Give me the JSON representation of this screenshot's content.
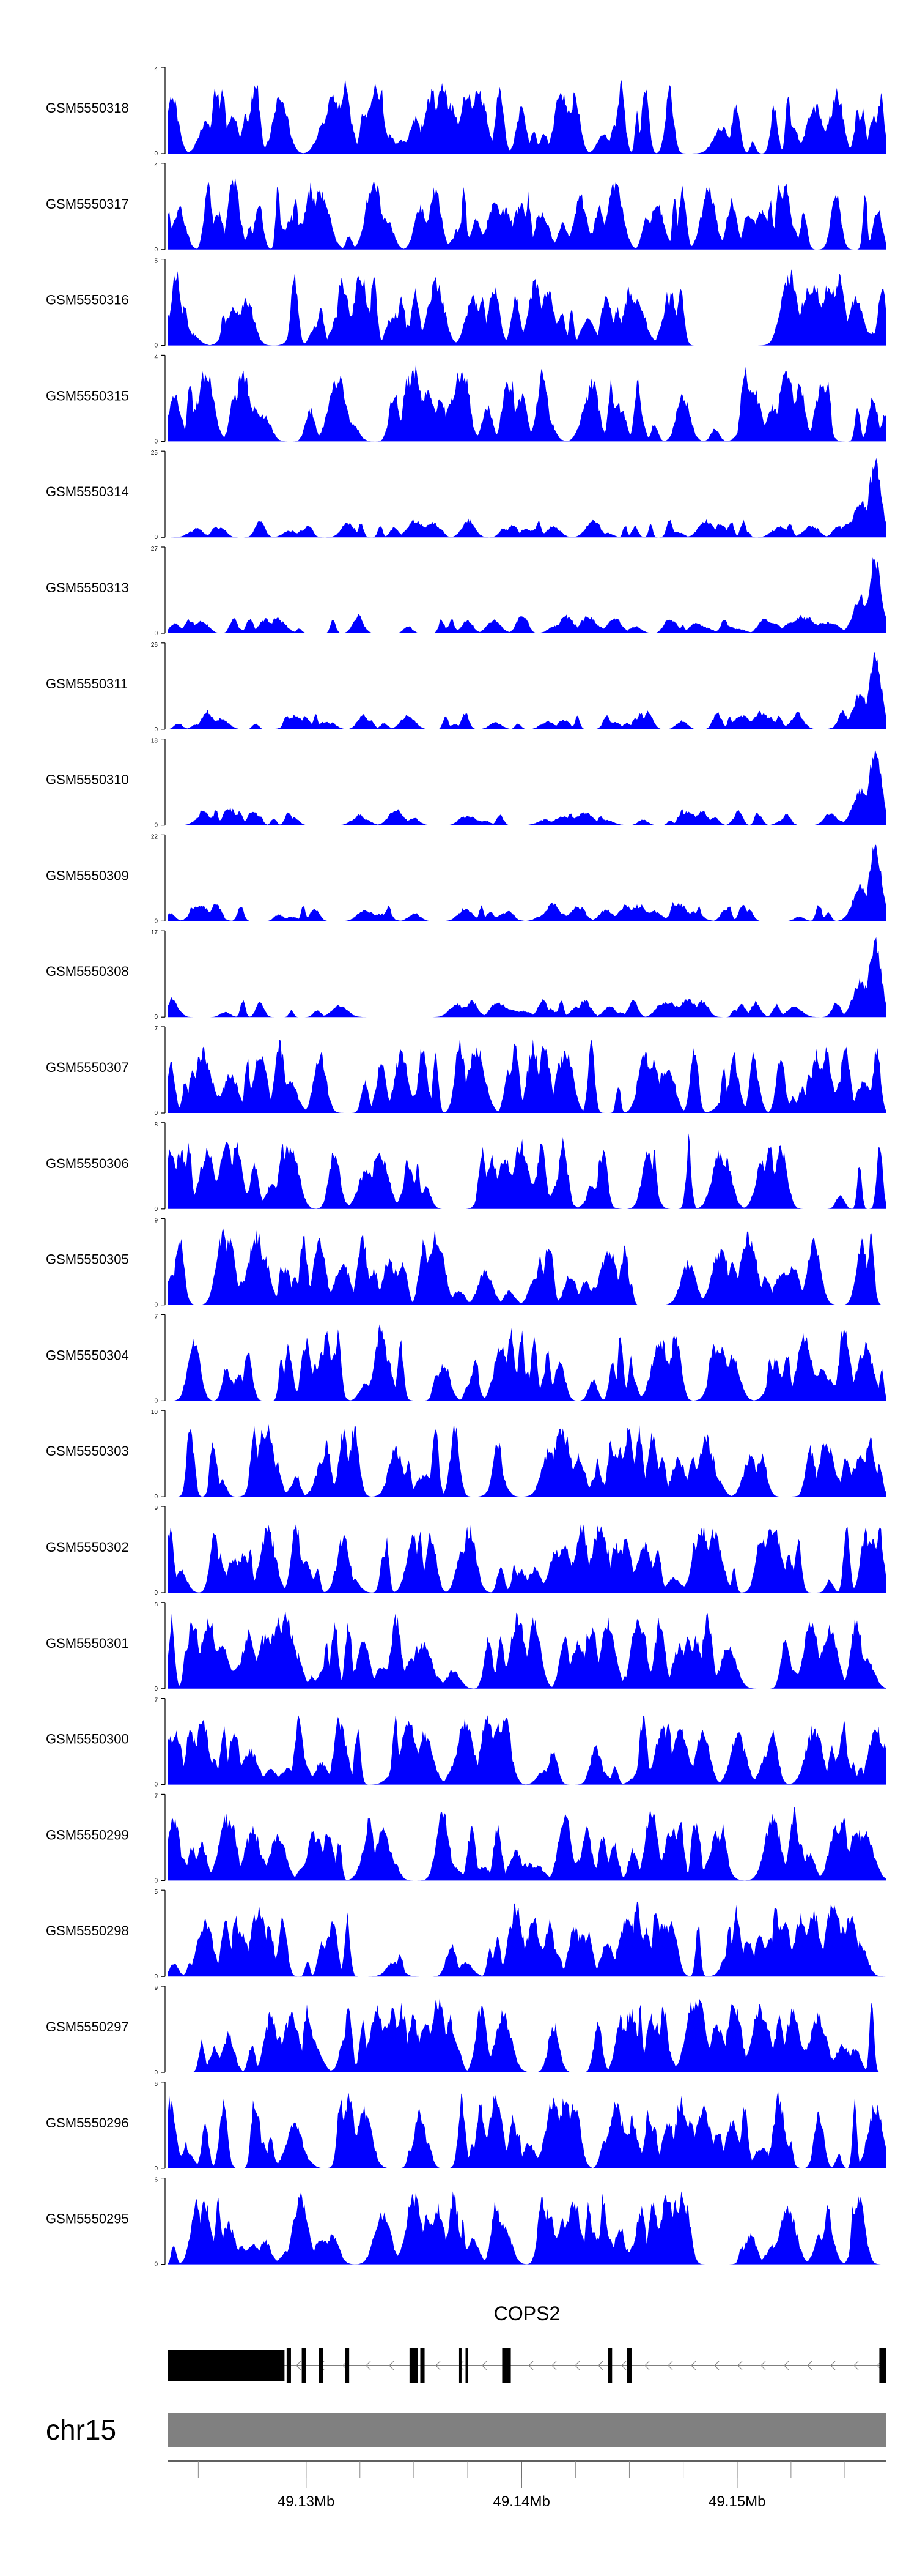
{
  "chart_data": {
    "type": "area",
    "fill_color": "#0000ff",
    "axis_color": "#000000",
    "tracks": [
      {
        "name": "GSM5550318",
        "ymax": "4"
      },
      {
        "name": "GSM5550317",
        "ymax": "4"
      },
      {
        "name": "GSM5550316",
        "ymax": "5"
      },
      {
        "name": "GSM5550315",
        "ymax": "4"
      },
      {
        "name": "GSM5550314",
        "ymax": "25"
      },
      {
        "name": "GSM5550313",
        "ymax": "27"
      },
      {
        "name": "GSM5550311",
        "ymax": "26"
      },
      {
        "name": "GSM5550310",
        "ymax": "18"
      },
      {
        "name": "GSM5550309",
        "ymax": "22"
      },
      {
        "name": "GSM5550308",
        "ymax": "17"
      },
      {
        "name": "GSM5550307",
        "ymax": "7"
      },
      {
        "name": "GSM5550306",
        "ymax": "8"
      },
      {
        "name": "GSM5550305",
        "ymax": "9"
      },
      {
        "name": "GSM5550304",
        "ymax": "7"
      },
      {
        "name": "GSM5550303",
        "ymax": "10"
      },
      {
        "name": "GSM5550302",
        "ymax": "9"
      },
      {
        "name": "GSM5550301",
        "ymax": "8"
      },
      {
        "name": "GSM5550300",
        "ymax": "7"
      },
      {
        "name": "GSM5550299",
        "ymax": "7"
      },
      {
        "name": "GSM5550298",
        "ymax": "5"
      },
      {
        "name": "GSM5550297",
        "ymax": "9"
      },
      {
        "name": "GSM5550296",
        "ymax": "6"
      },
      {
        "name": "GSM5550295",
        "ymax": "6"
      }
    ],
    "ymin_label": "0",
    "gene": {
      "name": "COPS2",
      "strand": "-",
      "exons": [
        {
          "start": 49.1236,
          "end": 49.129
        },
        {
          "start": 49.1291,
          "end": 49.1293
        },
        {
          "start": 49.1298,
          "end": 49.13
        },
        {
          "start": 49.1306,
          "end": 49.1308
        },
        {
          "start": 49.1318,
          "end": 49.132
        },
        {
          "start": 49.1348,
          "end": 49.1352
        },
        {
          "start": 49.1353,
          "end": 49.1355
        },
        {
          "start": 49.1371,
          "end": 49.1372
        },
        {
          "start": 49.1374,
          "end": 49.1375
        },
        {
          "start": 49.1391,
          "end": 49.1393
        },
        {
          "start": 49.1393,
          "end": 49.1395
        },
        {
          "start": 49.144,
          "end": 49.1442
        },
        {
          "start": 49.1449,
          "end": 49.1451
        },
        {
          "start": 49.1566,
          "end": 49.1569
        }
      ]
    },
    "chromosome": "chr15",
    "x_range": [
      49.1236,
      49.1569
    ],
    "x_ticks": [
      {
        "value": 49.13,
        "label": "49.13Mb"
      },
      {
        "value": 49.14,
        "label": "49.14Mb"
      },
      {
        "value": 49.15,
        "label": "49.15Mb"
      }
    ],
    "x_minor_step": 0.0025
  }
}
